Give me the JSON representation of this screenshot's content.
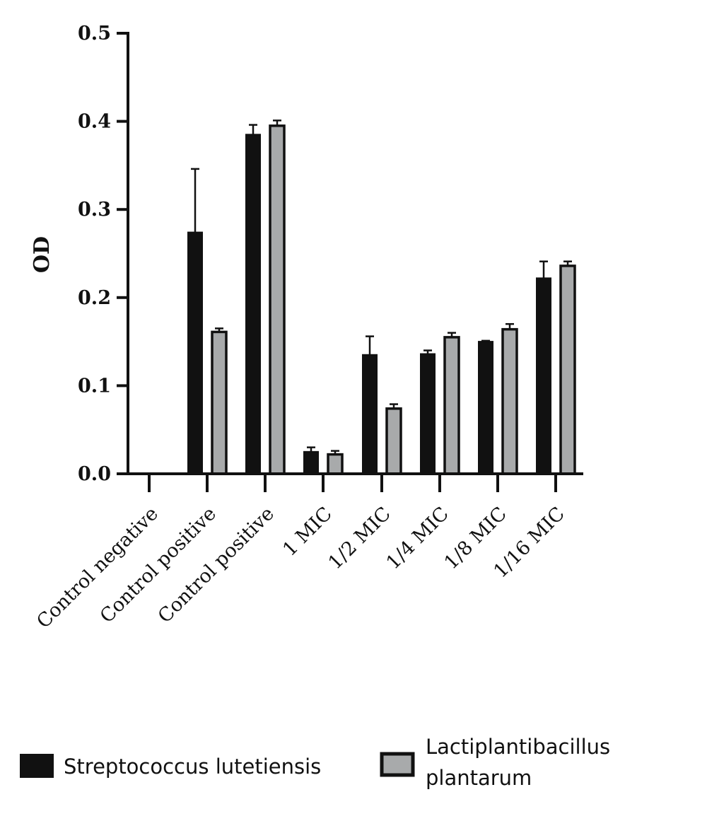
{
  "chart_data": {
    "type": "bar",
    "ylabel": "OD",
    "xlabel": "",
    "ylim": [
      0,
      0.5
    ],
    "yticks": [
      "0.0",
      "0.1",
      "0.2",
      "0.3",
      "0.4",
      "0.5"
    ],
    "categories": [
      "Control negative",
      "Control positive",
      "Control positive",
      "1 MIC",
      "1/2 MIC",
      "1/4 MIC",
      "1/8 MIC",
      "1/16 MIC"
    ],
    "series": [
      {
        "name": "Streptococcus lutetiensis",
        "color": "#111111",
        "values": [
          0,
          0.274,
          0.385,
          0.025,
          0.135,
          0.136,
          0.15,
          0.222
        ],
        "errors": [
          0,
          0.072,
          0.011,
          0.005,
          0.021,
          0.004,
          0.001,
          0.019
        ]
      },
      {
        "name": "Lactiplantibacillus plantarum",
        "color": "#a8aaab",
        "values": [
          0,
          0.161,
          0.395,
          0.022,
          0.074,
          0.155,
          0.164,
          0.236
        ],
        "errors": [
          0,
          0.004,
          0.006,
          0.004,
          0.005,
          0.005,
          0.006,
          0.005
        ]
      }
    ],
    "grid": false,
    "legend_position": "bottom"
  },
  "legend": {
    "item1": "Streptococcus lutetiensis",
    "item2_line1": "Lactiplantibacillus",
    "item2_line2": "plantarum"
  }
}
